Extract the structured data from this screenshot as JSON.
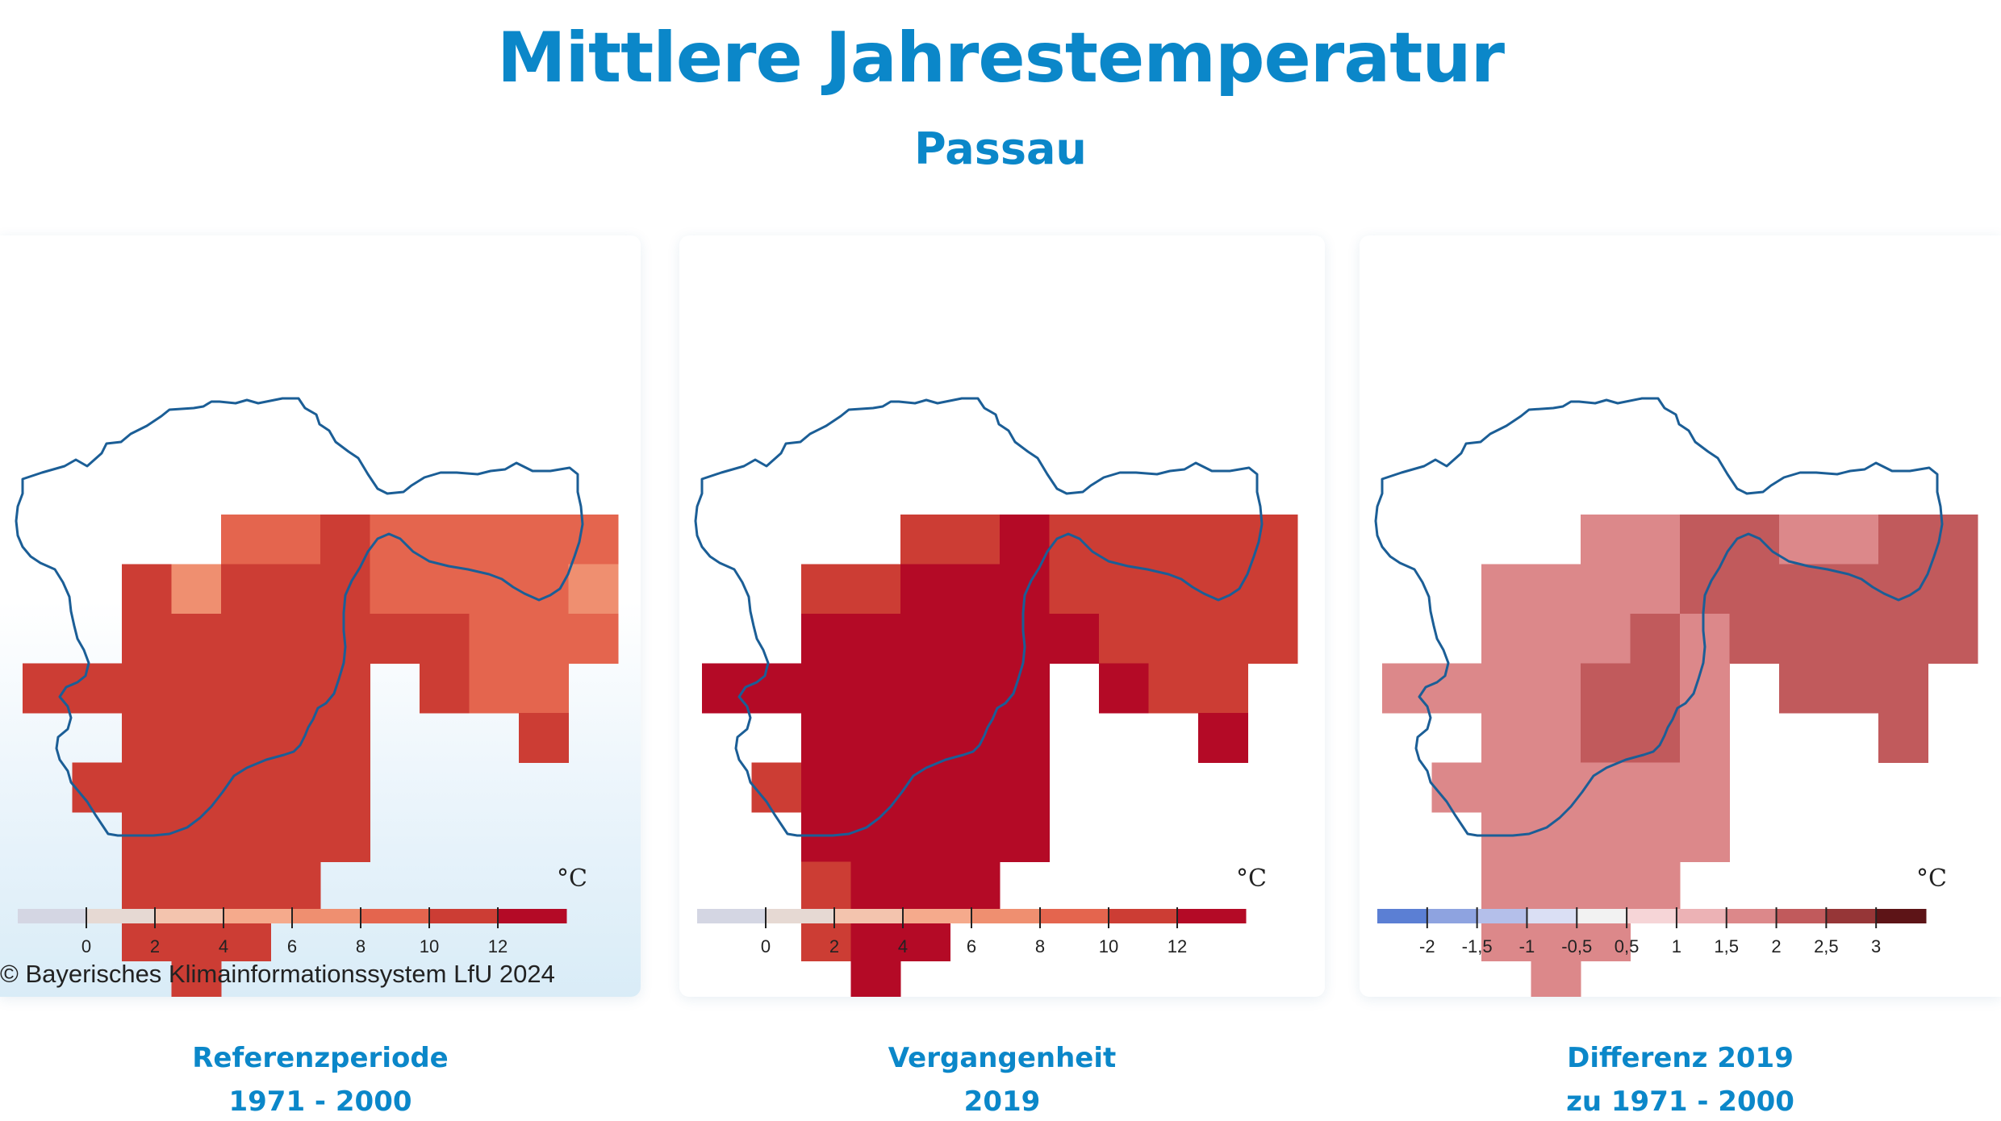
{
  "title": "Mittlere Jahrestemperatur",
  "subtitle": "Passau",
  "copyright": "© Bayerisches Klimainformationssystem LfU 2024",
  "panels": [
    {
      "id": "ref",
      "caption_line1": "Referenzperiode",
      "caption_line2": "1971 - 2000",
      "unit": "°C",
      "legend": {
        "colors": [
          "#d4d6e3",
          "#e6d9d3",
          "#f3c4ae",
          "#f5aa8c",
          "#ef8f70",
          "#e4654e",
          "#cc3d34",
          "#b40a26"
        ],
        "labels": [
          "0",
          "2",
          "4",
          "6",
          "8",
          "10",
          "12"
        ]
      },
      "grid_values_celsius": [
        [
          null,
          null,
          null,
          null,
          null,
          null,
          null,
          null,
          null,
          null,
          null,
          null
        ],
        [
          null,
          null,
          null,
          null,
          8,
          8,
          10,
          9,
          9,
          9,
          8,
          8
        ],
        [
          null,
          null,
          10,
          6,
          10,
          10,
          10,
          8,
          8,
          8,
          8,
          6
        ],
        [
          null,
          null,
          10,
          10,
          10,
          10,
          10,
          10,
          10,
          9,
          9,
          9
        ],
        [
          10,
          10,
          10,
          10,
          10,
          10,
          10,
          null,
          10,
          9,
          9,
          null
        ],
        [
          null,
          null,
          10,
          10,
          10,
          10,
          10,
          null,
          null,
          null,
          10,
          null
        ],
        [
          null,
          10,
          10,
          10,
          10,
          10,
          10,
          null,
          null,
          null,
          null,
          null
        ],
        [
          null,
          null,
          10,
          10,
          10,
          10,
          10,
          null,
          null,
          null,
          null,
          null
        ],
        [
          null,
          null,
          10,
          10,
          10,
          10,
          null,
          null,
          null,
          null,
          null,
          null
        ],
        [
          null,
          null,
          10,
          10,
          10,
          null,
          null,
          null,
          null,
          null,
          null,
          null
        ],
        [
          null,
          null,
          null,
          10,
          null,
          null,
          null,
          null,
          null,
          null,
          null,
          null
        ]
      ]
    },
    {
      "id": "past",
      "caption_line1": "Vergangenheit",
      "caption_line2": "2019",
      "unit": "°C",
      "legend": {
        "colors": [
          "#d4d6e3",
          "#e6d9d3",
          "#f3c4ae",
          "#f5aa8c",
          "#ef8f70",
          "#e4654e",
          "#cc3d34",
          "#b40a26"
        ],
        "labels": [
          "0",
          "2",
          "4",
          "6",
          "8",
          "10",
          "12"
        ]
      },
      "grid_values_celsius": [
        [
          null,
          null,
          null,
          null,
          null,
          null,
          null,
          null,
          null,
          null,
          null,
          null
        ],
        [
          null,
          null,
          null,
          null,
          10,
          10,
          12,
          10,
          10,
          10,
          10,
          10
        ],
        [
          null,
          null,
          10,
          10,
          12,
          12,
          12,
          10,
          10,
          10,
          10,
          10
        ],
        [
          null,
          null,
          12,
          12,
          12,
          12,
          12,
          12,
          10,
          10,
          10,
          10
        ],
        [
          12,
          12,
          12,
          12,
          12,
          12,
          12,
          null,
          12,
          10,
          10,
          null
        ],
        [
          null,
          null,
          12,
          12,
          12,
          12,
          12,
          null,
          null,
          null,
          12,
          null
        ],
        [
          null,
          10,
          12,
          12,
          12,
          12,
          12,
          null,
          null,
          null,
          null,
          null
        ],
        [
          null,
          null,
          12,
          12,
          12,
          12,
          12,
          null,
          null,
          null,
          null,
          null
        ],
        [
          null,
          null,
          10,
          12,
          12,
          12,
          null,
          null,
          null,
          null,
          null,
          null
        ],
        [
          null,
          null,
          10,
          12,
          12,
          null,
          null,
          null,
          null,
          null,
          null,
          null
        ],
        [
          null,
          null,
          null,
          12,
          null,
          null,
          null,
          null,
          null,
          null,
          null,
          null
        ]
      ]
    },
    {
      "id": "diff",
      "caption_line1": "Differenz 2019",
      "caption_line2": "zu 1971 - 2000",
      "unit": "°C",
      "legend": {
        "colors": [
          "#5b7fd4",
          "#8ea3e0",
          "#b4bfea",
          "#dadff4",
          "#f2f2f2",
          "#f6d5d7",
          "#ecb2b5",
          "#dc888a",
          "#c15a5c",
          "#963637",
          "#5d1417"
        ],
        "labels": [
          "-2",
          "-1,5",
          "-1",
          "-0,5",
          "0,5",
          "1",
          "1,5",
          "2",
          "2,5",
          "3"
        ]
      },
      "grid_values_celsius": [
        [
          null,
          null,
          null,
          null,
          null,
          null,
          null,
          null,
          null,
          null,
          null,
          null
        ],
        [
          null,
          null,
          null,
          null,
          1.5,
          1.5,
          2,
          2,
          1.5,
          1.5,
          2,
          2
        ],
        [
          null,
          null,
          1.5,
          1.5,
          1.5,
          1.5,
          2,
          2,
          2,
          2,
          2,
          2
        ],
        [
          null,
          null,
          1.5,
          1.5,
          1.5,
          2,
          1.5,
          2,
          2,
          2,
          2,
          2
        ],
        [
          1.5,
          1.5,
          1.5,
          1.5,
          2,
          2,
          1.5,
          null,
          2,
          2,
          2,
          null
        ],
        [
          null,
          null,
          1.5,
          1.5,
          2,
          2,
          1.5,
          null,
          null,
          null,
          2,
          null
        ],
        [
          null,
          1.5,
          1.5,
          1.5,
          1.5,
          1.5,
          1.5,
          null,
          null,
          null,
          null,
          null
        ],
        [
          null,
          null,
          1.5,
          1.5,
          1.5,
          1.5,
          1.5,
          null,
          null,
          null,
          null,
          null
        ],
        [
          null,
          null,
          1.5,
          1.5,
          1.5,
          1.5,
          null,
          null,
          null,
          null,
          null,
          null
        ],
        [
          null,
          null,
          1.5,
          1.5,
          1.5,
          null,
          null,
          null,
          null,
          null,
          null,
          null
        ],
        [
          null,
          null,
          null,
          1.5,
          null,
          null,
          null,
          null,
          null,
          null,
          null,
          null
        ]
      ]
    }
  ]
}
